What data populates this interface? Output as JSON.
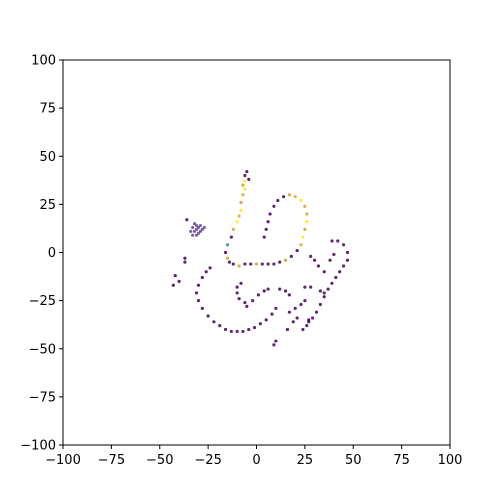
{
  "chart_data": {
    "type": "scatter",
    "title": "",
    "xlabel": "",
    "ylabel": "",
    "xlim": [
      -100,
      100
    ],
    "ylim": [
      -100,
      100
    ],
    "grid": false,
    "legend": "none",
    "x_ticks": [
      -100,
      -75,
      -50,
      -25,
      0,
      25,
      50,
      75,
      100
    ],
    "y_ticks": [
      -100,
      -75,
      -50,
      -25,
      0,
      25,
      50,
      75,
      100
    ],
    "x_tick_labels": [
      "−100",
      "−75",
      "−50",
      "−25",
      "0",
      "25",
      "50",
      "75",
      "100"
    ],
    "y_tick_labels": [
      "−100",
      "−75",
      "−50",
      "−25",
      "0",
      "25",
      "50",
      "75",
      "100"
    ],
    "colormap": [
      "#440154",
      "#3b528b",
      "#21918c",
      "#fde725"
    ],
    "series": [
      {
        "values": [
          [
            -31,
            12
          ],
          [
            -30,
            13
          ],
          [
            -32,
            11
          ],
          [
            -29,
            11
          ],
          [
            -31,
            14
          ],
          [
            -33,
            13
          ],
          [
            -30,
            10
          ],
          [
            -28,
            12
          ],
          [
            -32,
            15
          ],
          [
            -34,
            11
          ],
          [
            -31,
            9
          ],
          [
            -29,
            14
          ],
          [
            -33,
            9
          ],
          [
            -27,
            13
          ],
          [
            -6,
            37
          ],
          [
            -7,
            35
          ],
          [
            -6,
            33
          ],
          [
            -7,
            30
          ],
          [
            -8,
            26
          ],
          [
            -8,
            22
          ],
          [
            -9,
            19
          ],
          [
            -10,
            16
          ],
          [
            -12,
            12
          ],
          [
            -13,
            8
          ],
          [
            -15,
            4
          ],
          [
            -16,
            0
          ],
          [
            -15,
            -3
          ],
          [
            -14,
            -5
          ],
          [
            -12,
            -6
          ],
          [
            -9,
            -7
          ],
          [
            -6,
            -6
          ],
          [
            -3,
            -6
          ],
          [
            0,
            -6
          ],
          [
            3,
            -6
          ],
          [
            6,
            -6
          ],
          [
            9,
            -6
          ],
          [
            12,
            -5
          ],
          [
            15,
            -4
          ],
          [
            18,
            -2
          ],
          [
            21,
            1
          ],
          [
            23,
            4
          ],
          [
            24,
            8
          ],
          [
            25,
            12
          ],
          [
            26,
            16
          ],
          [
            26,
            20
          ],
          [
            25,
            24
          ],
          [
            23,
            27
          ],
          [
            20,
            29
          ],
          [
            17,
            30
          ],
          [
            14,
            29
          ],
          [
            11,
            27
          ],
          [
            9,
            24
          ],
          [
            7,
            20
          ],
          [
            6,
            16
          ],
          [
            5,
            12
          ],
          [
            4,
            8
          ],
          [
            -5,
            42
          ],
          [
            -6,
            40
          ],
          [
            -4,
            38
          ],
          [
            -36,
            17
          ],
          [
            39,
            6
          ],
          [
            42,
            6
          ],
          [
            45,
            4
          ],
          [
            47,
            0
          ],
          [
            47,
            -4
          ],
          [
            45,
            -7
          ],
          [
            43,
            -10
          ],
          [
            41,
            -13
          ],
          [
            39,
            -16
          ],
          [
            37,
            -19
          ],
          [
            35,
            -23
          ],
          [
            33,
            -27
          ],
          [
            31,
            -31
          ],
          [
            29,
            -34
          ],
          [
            27,
            -36
          ],
          [
            28,
            -2
          ],
          [
            30,
            -4
          ],
          [
            32,
            -7
          ],
          [
            35,
            -10
          ],
          [
            38,
            -4
          ],
          [
            40,
            -1
          ],
          [
            -40,
            -15
          ],
          [
            -42,
            -12
          ],
          [
            -43,
            -17
          ],
          [
            -37,
            -3
          ],
          [
            -37,
            -5
          ],
          [
            -24,
            -8
          ],
          [
            -26,
            -10
          ],
          [
            -28,
            -13
          ],
          [
            -30,
            -17
          ],
          [
            -31,
            -21
          ],
          [
            -30,
            -25
          ],
          [
            -28,
            -29
          ],
          [
            -25,
            -33
          ],
          [
            -22,
            -36
          ],
          [
            -19,
            -38
          ],
          [
            -16,
            -40
          ],
          [
            -13,
            -41
          ],
          [
            -10,
            -41
          ],
          [
            -7,
            -41
          ],
          [
            -4,
            -40
          ],
          [
            -1,
            -39
          ],
          [
            2,
            -37
          ],
          [
            5,
            -35
          ],
          [
            8,
            -32
          ],
          [
            10,
            -29
          ],
          [
            -8,
            -16
          ],
          [
            -10,
            -18
          ],
          [
            -10,
            -21
          ],
          [
            -9,
            -24
          ],
          [
            -2,
            -25
          ],
          [
            1,
            -22
          ],
          [
            4,
            -20
          ],
          [
            6,
            -19
          ],
          [
            12,
            -19
          ],
          [
            15,
            -20
          ],
          [
            17,
            -22
          ],
          [
            -6,
            -26
          ],
          [
            -5,
            -28
          ],
          [
            17,
            -31
          ],
          [
            20,
            -29
          ],
          [
            23,
            -27
          ],
          [
            25,
            -25
          ],
          [
            21,
            -34
          ],
          [
            19,
            -36
          ],
          [
            16,
            -40
          ],
          [
            25,
            -18
          ],
          [
            28,
            -18
          ],
          [
            33,
            -20
          ],
          [
            35,
            -21
          ],
          [
            9,
            -48
          ],
          [
            10,
            -46
          ],
          [
            24,
            -40
          ],
          [
            26,
            -38
          ],
          [
            27,
            -35
          ]
        ],
        "colors": [
          "#6a4a8c",
          "#6a4a8c",
          "#6a4a8c",
          "#6a4a8c",
          "#6a4a8c",
          "#6a4a8c",
          "#6a4a8c",
          "#6a4a8c",
          "#6a4a8c",
          "#6a4a8c",
          "#6a4a8c",
          "#6a4a8c",
          "#6a4a8c",
          "#6a4a8c",
          "#fde725",
          "#c9a227",
          "#fde725",
          "#d4a73a",
          "#c9a227",
          "#fde725",
          "#d4a73a",
          "#fde725",
          "#c9a227",
          "#440154",
          "#21918c",
          "#440154",
          "#c9a227",
          "#440154",
          "#440154",
          "#d4a73a",
          "#440154",
          "#440154",
          "#c9a227",
          "#440154",
          "#440154",
          "#440154",
          "#440154",
          "#c9a227",
          "#440154",
          "#440154",
          "#d4a73a",
          "#fde725",
          "#c9a227",
          "#fde725",
          "#d4a73a",
          "#c9a227",
          "#fde725",
          "#d4a73a",
          "#c9a227",
          "#440154",
          "#440154",
          "#440154",
          "#440154",
          "#440154",
          "#440154",
          "#440154",
          "#440154",
          "#440154",
          "#440154",
          "#440154",
          "#440154",
          "#440154",
          "#440154",
          "#440154",
          "#440154",
          "#440154",
          "#440154",
          "#440154",
          "#440154",
          "#440154",
          "#440154",
          "#440154",
          "#440154",
          "#440154",
          "#440154",
          "#440154",
          "#440154",
          "#440154",
          "#440154",
          "#440154",
          "#440154",
          "#440154",
          "#440154",
          "#440154",
          "#440154",
          "#440154",
          "#440154",
          "#440154",
          "#440154",
          "#440154",
          "#440154",
          "#440154",
          "#440154",
          "#440154",
          "#440154",
          "#440154",
          "#440154",
          "#440154",
          "#440154",
          "#440154",
          "#440154",
          "#440154",
          "#440154",
          "#440154",
          "#440154",
          "#440154",
          "#440154",
          "#440154",
          "#440154",
          "#440154",
          "#440154",
          "#440154",
          "#440154",
          "#440154",
          "#440154",
          "#440154",
          "#440154",
          "#440154",
          "#440154",
          "#440154",
          "#440154",
          "#440154",
          "#440154",
          "#440154",
          "#440154",
          "#440154",
          "#440154",
          "#440154",
          "#440154",
          "#440154",
          "#440154",
          "#440154",
          "#440154",
          "#440154",
          "#440154"
        ]
      }
    ]
  }
}
